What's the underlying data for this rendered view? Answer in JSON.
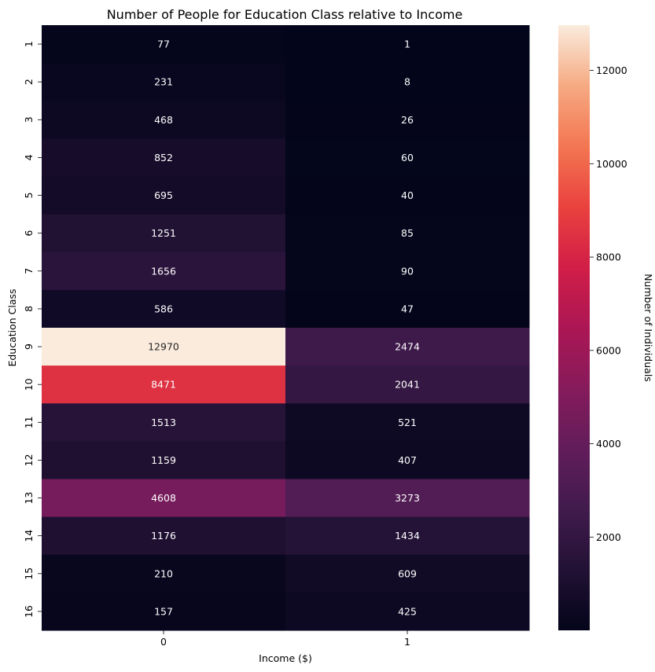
{
  "chart_data": {
    "type": "heatmap",
    "title": "Number of People for Education Class relative to Income",
    "xlabel": "Income ($)",
    "ylabel": "Education Class",
    "x_categories": [
      "0",
      "1"
    ],
    "y_categories": [
      "1",
      "2",
      "3",
      "4",
      "5",
      "6",
      "7",
      "8",
      "9",
      "10",
      "11",
      "12",
      "13",
      "14",
      "15",
      "16"
    ],
    "values": [
      [
        77,
        1
      ],
      [
        231,
        8
      ],
      [
        468,
        26
      ],
      [
        852,
        60
      ],
      [
        695,
        40
      ],
      [
        1251,
        85
      ],
      [
        1656,
        90
      ],
      [
        586,
        47
      ],
      [
        12970,
        2474
      ],
      [
        8471,
        2041
      ],
      [
        1513,
        521
      ],
      [
        1159,
        407
      ],
      [
        4608,
        3273
      ],
      [
        1176,
        1434
      ],
      [
        210,
        609
      ],
      [
        157,
        425
      ]
    ],
    "colorbar": {
      "label": "Number of Individuals",
      "min": 1,
      "max": 12970,
      "ticks": [
        2000,
        4000,
        6000,
        8000,
        10000,
        12000
      ],
      "colormap": "rocket"
    }
  }
}
